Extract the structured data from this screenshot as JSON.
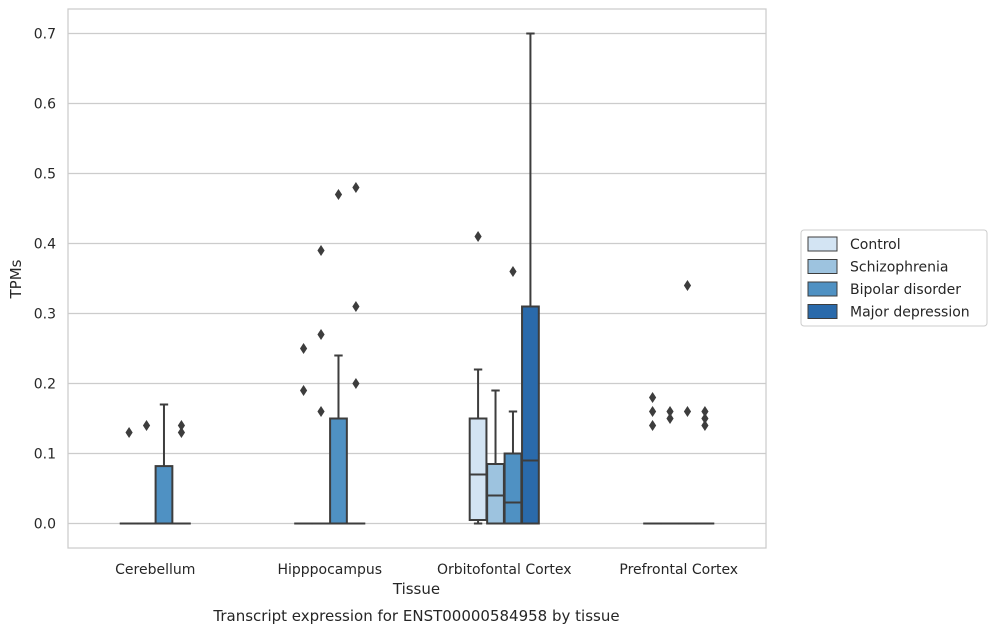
{
  "chart_data": {
    "type": "box",
    "title": "",
    "caption": "Transcript expression for ENST00000584958 by tissue",
    "xlabel": "Tissue",
    "ylabel": "TPMs",
    "ylim": [
      -0.035,
      0.735
    ],
    "yticks": [
      "0.0",
      "0.1",
      "0.2",
      "0.3",
      "0.4",
      "0.5",
      "0.6",
      "0.7"
    ],
    "grid": "horizontal",
    "legend_position": "right",
    "categories": [
      "Cerebellum",
      "Hipppocampus",
      "Orbitofontal Cortex",
      "Prefrontal Cortex"
    ],
    "series": [
      {
        "name": "Control",
        "color": "#d3e4f3",
        "boxes": [
          {
            "min": 0,
            "q1": 0,
            "median": 0,
            "q3": 0,
            "max": 0,
            "outliers": [
              0.13
            ]
          },
          {
            "min": 0,
            "q1": 0,
            "median": 0,
            "q3": 0,
            "max": 0,
            "outliers": [
              0.19,
              0.25
            ]
          },
          {
            "min": 0,
            "q1": 0.005,
            "median": 0.07,
            "q3": 0.15,
            "max": 0.22,
            "outliers": [
              0.41
            ]
          },
          {
            "min": 0,
            "q1": 0,
            "median": 0,
            "q3": 0,
            "max": 0,
            "outliers": [
              0.14,
              0.16,
              0.18
            ]
          }
        ]
      },
      {
        "name": "Schizophrenia",
        "color": "#9dc3df",
        "boxes": [
          {
            "min": 0,
            "q1": 0,
            "median": 0,
            "q3": 0,
            "max": 0,
            "outliers": [
              0.14
            ]
          },
          {
            "min": 0,
            "q1": 0,
            "median": 0,
            "q3": 0,
            "max": 0,
            "outliers": [
              0.16,
              0.27,
              0.39
            ]
          },
          {
            "min": 0,
            "q1": 0,
            "median": 0.04,
            "q3": 0.085,
            "max": 0.19,
            "outliers": []
          },
          {
            "min": 0,
            "q1": 0,
            "median": 0,
            "q3": 0,
            "max": 0,
            "outliers": [
              0.15,
              0.16
            ]
          }
        ]
      },
      {
        "name": "Bipolar disorder",
        "color": "#4f91c3",
        "boxes": [
          {
            "min": 0,
            "q1": 0,
            "median": 0,
            "q3": 0.082,
            "max": 0.17,
            "outliers": []
          },
          {
            "min": 0,
            "q1": 0,
            "median": 0,
            "q3": 0.15,
            "max": 0.24,
            "outliers": [
              0.47
            ]
          },
          {
            "min": 0,
            "q1": 0,
            "median": 0.03,
            "q3": 0.1,
            "max": 0.16,
            "outliers": [
              0.36
            ]
          },
          {
            "min": 0,
            "q1": 0,
            "median": 0,
            "q3": 0,
            "max": 0,
            "outliers": [
              0.16,
              0.34
            ]
          }
        ]
      },
      {
        "name": "Major depression",
        "color": "#2a6aab",
        "boxes": [
          {
            "min": 0,
            "q1": 0,
            "median": 0,
            "q3": 0,
            "max": 0,
            "outliers": [
              0.13,
              0.14
            ]
          },
          {
            "min": 0,
            "q1": 0,
            "median": 0,
            "q3": 0,
            "max": 0,
            "outliers": [
              0.2,
              0.31,
              0.48
            ]
          },
          {
            "min": 0,
            "q1": 0,
            "median": 0.09,
            "q3": 0.31,
            "max": 0.7,
            "outliers": []
          },
          {
            "min": 0,
            "q1": 0,
            "median": 0,
            "q3": 0,
            "max": 0,
            "outliers": [
              0.14,
              0.15,
              0.16
            ]
          }
        ]
      }
    ]
  }
}
